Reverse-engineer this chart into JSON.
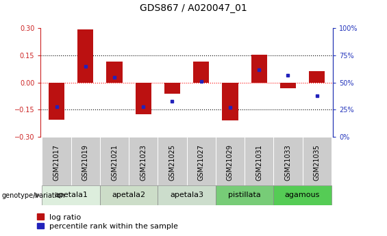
{
  "title": "GDS867 / A020047_01",
  "samples": [
    "GSM21017",
    "GSM21019",
    "GSM21021",
    "GSM21023",
    "GSM21025",
    "GSM21027",
    "GSM21029",
    "GSM21031",
    "GSM21033",
    "GSM21035"
  ],
  "log_ratio": [
    -0.205,
    0.295,
    0.115,
    -0.175,
    -0.06,
    0.115,
    -0.21,
    0.155,
    -0.03,
    0.065
  ],
  "percentile_rank": [
    28,
    65,
    55,
    28,
    33,
    51,
    27,
    62,
    57,
    38
  ],
  "ylim_left": [
    -0.3,
    0.3
  ],
  "ylim_right": [
    0,
    100
  ],
  "yticks_left": [
    -0.3,
    -0.15,
    0,
    0.15,
    0.3
  ],
  "yticks_right": [
    0,
    25,
    50,
    75,
    100
  ],
  "bar_color": "#BB1111",
  "dot_color": "#2222BB",
  "bar_width": 0.55,
  "groups": [
    {
      "name": "apetala1",
      "indices": [
        0,
        1
      ],
      "color": "#DDEEDD"
    },
    {
      "name": "apetala2",
      "indices": [
        2,
        3
      ],
      "color": "#CCDDC C"
    },
    {
      "name": "apetala3",
      "indices": [
        4,
        5
      ],
      "color": "#CCDDCC"
    },
    {
      "name": "pistillata",
      "indices": [
        6,
        7
      ],
      "color": "#77CC77"
    },
    {
      "name": "agamous",
      "indices": [
        8,
        9
      ],
      "color": "#55CC55"
    }
  ],
  "legend_log_ratio": "log ratio",
  "legend_percentile": "percentile rank within the sample",
  "genotype_label": "genotype/variation",
  "left_tick_color": "#CC2222",
  "right_tick_color": "#2233BB",
  "title_fontsize": 10,
  "tick_fontsize": 7,
  "group_label_fontsize": 8,
  "legend_fontsize": 8,
  "sample_box_color": "#CCCCCC",
  "group_colors": [
    "#DDEEDD",
    "#CCDDCC",
    "#CCDDCC",
    "#77CC77",
    "#55CC55"
  ]
}
